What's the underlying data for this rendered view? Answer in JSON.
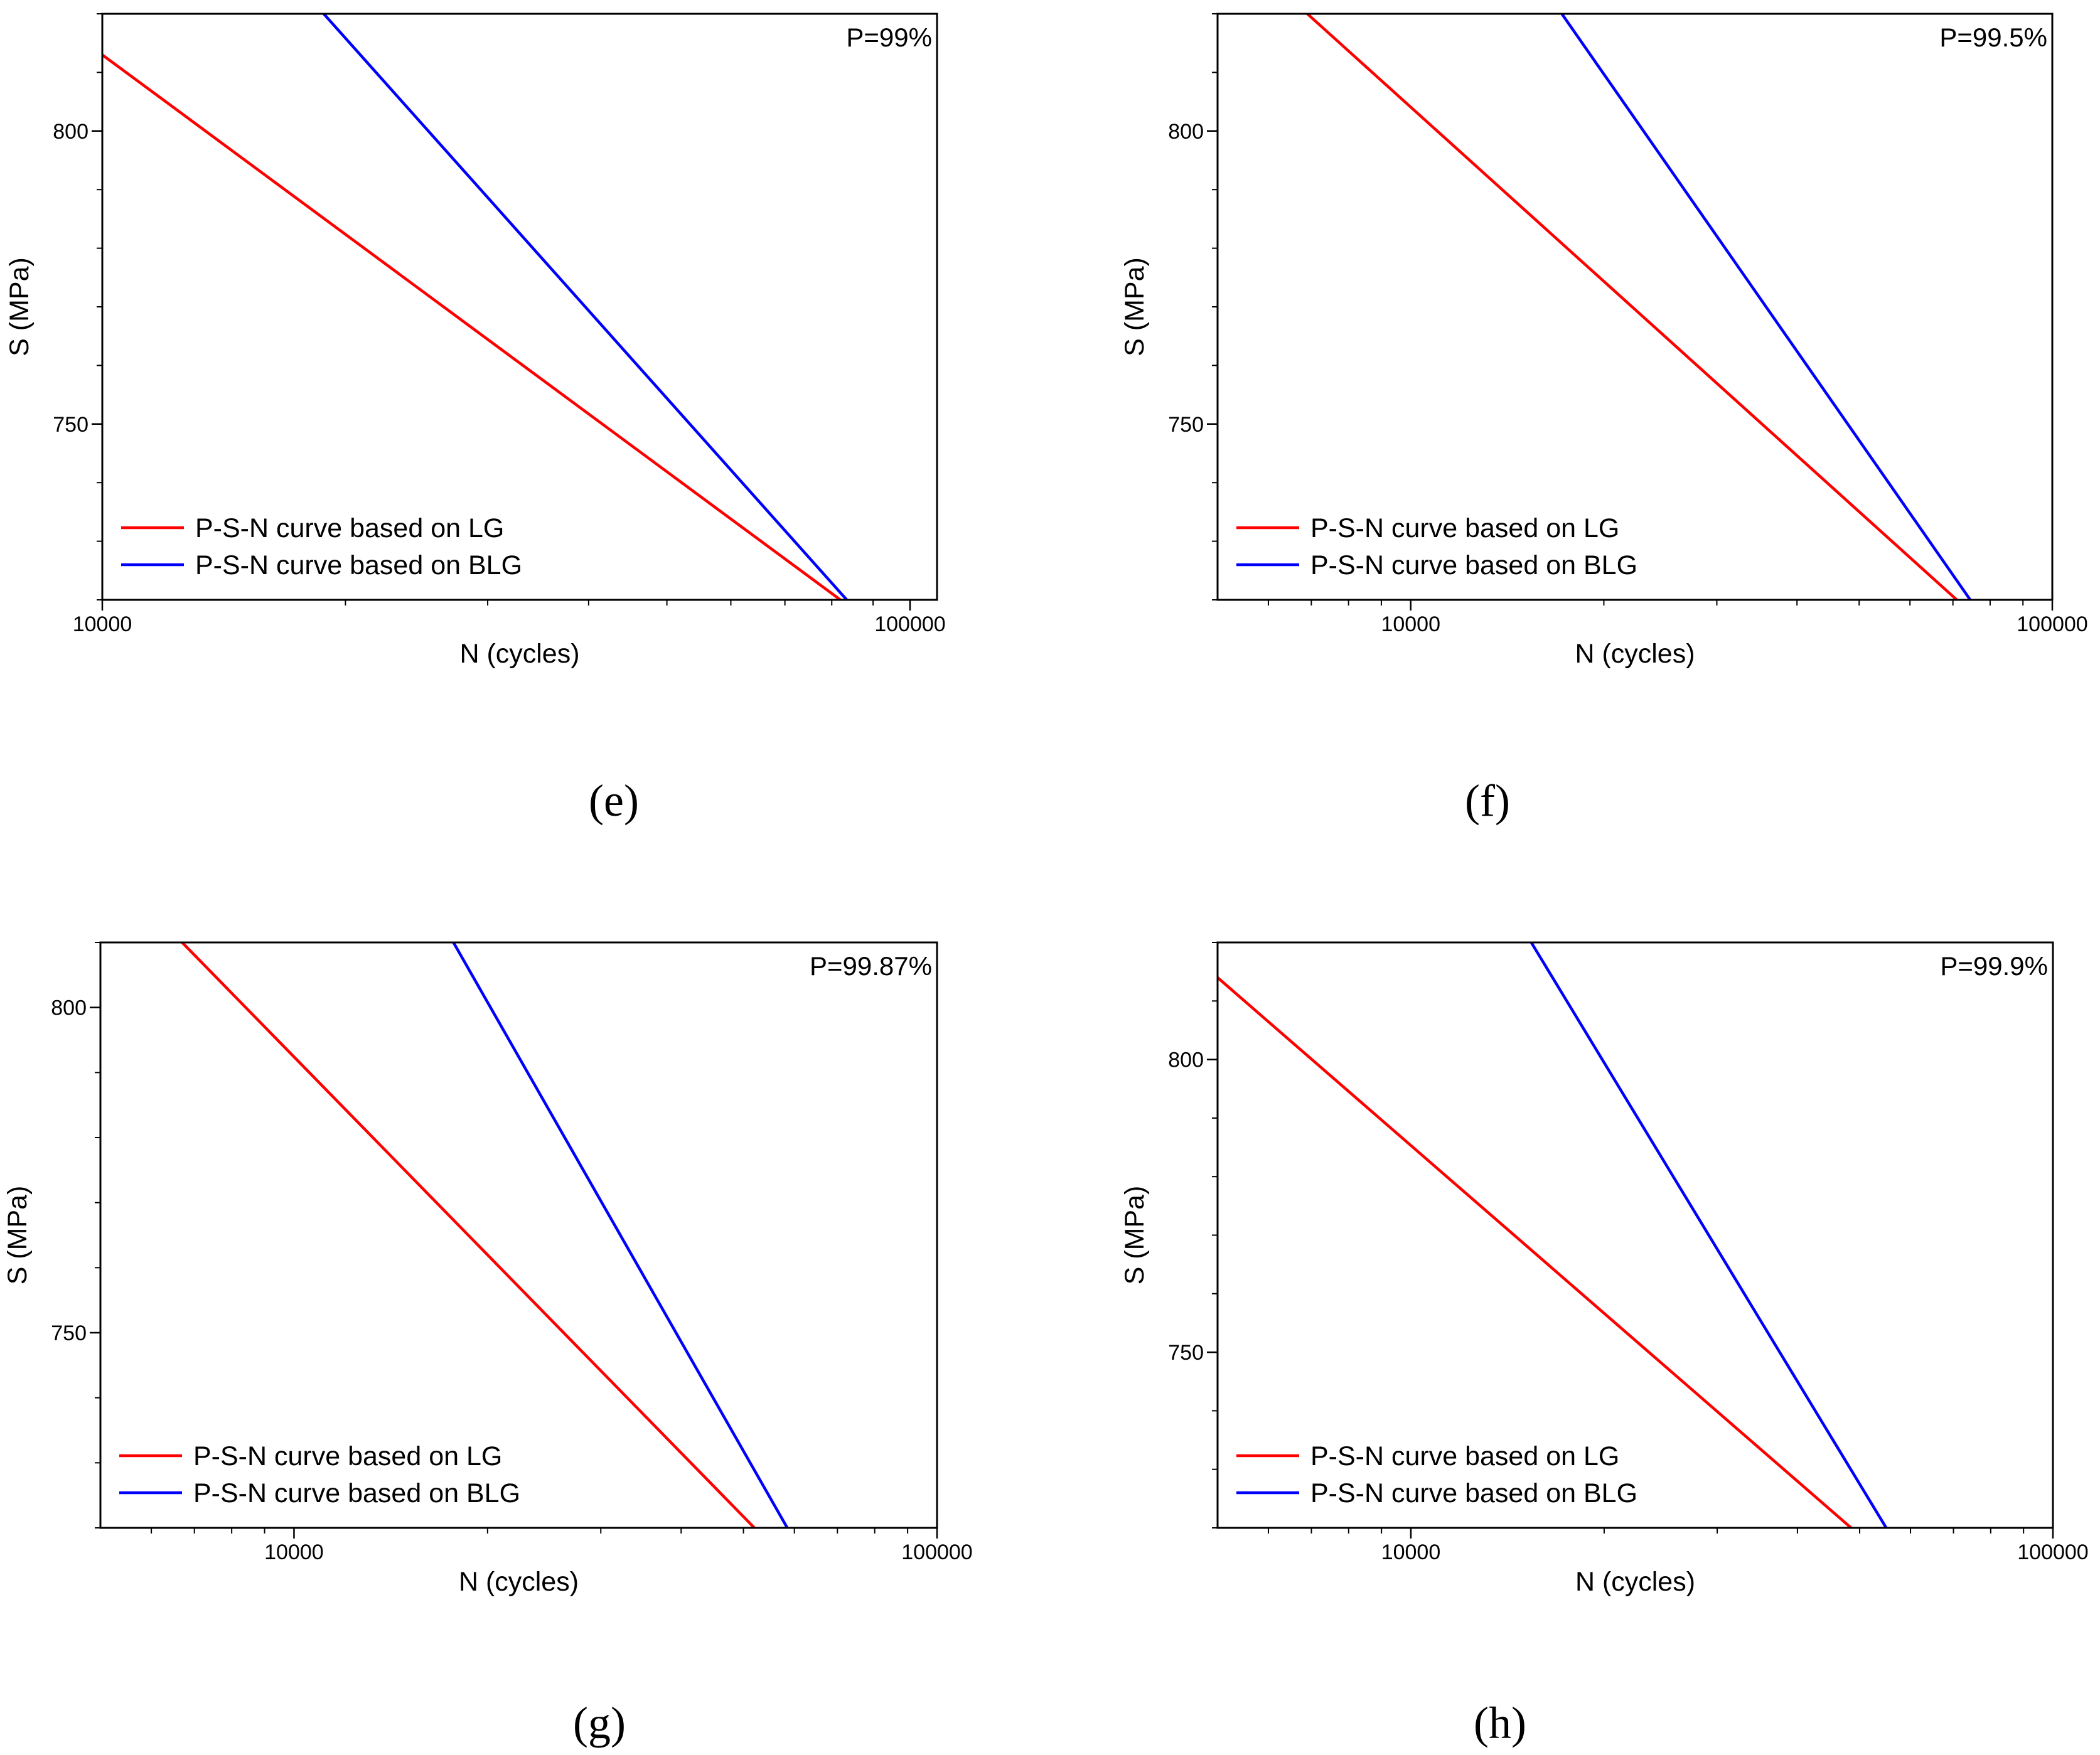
{
  "chart_data": [
    {
      "type": "line",
      "panel": "(e)",
      "annotation": "P=99%",
      "xlabel": "N (cycles)",
      "ylabel": "S (MPa)",
      "xscale": "log",
      "xlim": [
        10000,
        108000
      ],
      "ylim": [
        720,
        820
      ],
      "xticks": [
        {
          "value": 10000,
          "label": "10000"
        },
        {
          "value": 100000,
          "label": "100000"
        }
      ],
      "yticks": [
        {
          "value": 750,
          "label": "750"
        },
        {
          "value": 800,
          "label": "800"
        }
      ],
      "legend_position": "bottom-left",
      "series": [
        {
          "name": "P-S-N curve based on LG",
          "color": "#ff0000",
          "x": [
            10000,
            82000
          ],
          "y": [
            813,
            720
          ]
        },
        {
          "name": "P-S-N curve based on BLG",
          "color": "#0000ff",
          "x": [
            18800,
            83500
          ],
          "y": [
            820,
            720
          ]
        }
      ]
    },
    {
      "type": "line",
      "panel": "(f)",
      "annotation": "P=99.5%",
      "xlabel": "N (cycles)",
      "ylabel": "S (MPa)",
      "xscale": "log",
      "xlim": [
        5000,
        100000
      ],
      "ylim": [
        720,
        820
      ],
      "xticks": [
        {
          "value": 10000,
          "label": "10000"
        },
        {
          "value": 100000,
          "label": "100000"
        }
      ],
      "yticks": [
        {
          "value": 750,
          "label": "750"
        },
        {
          "value": 800,
          "label": "800"
        }
      ],
      "legend_position": "bottom-left",
      "series": [
        {
          "name": "P-S-N curve based on LG",
          "color": "#ff0000",
          "x": [
            6900,
            71000
          ],
          "y": [
            820,
            720
          ]
        },
        {
          "name": "P-S-N curve based on BLG",
          "color": "#0000ff",
          "x": [
            17200,
            74500
          ],
          "y": [
            820,
            720
          ]
        }
      ]
    },
    {
      "type": "line",
      "panel": "(g)",
      "annotation": "P=99.87%",
      "xlabel": "N (cycles)",
      "ylabel": "S (MPa)",
      "xscale": "log",
      "xlim": [
        5000,
        100000
      ],
      "ylim": [
        720,
        810
      ],
      "xticks": [
        {
          "value": 10000,
          "label": "10000"
        },
        {
          "value": 100000,
          "label": "100000"
        }
      ],
      "yticks": [
        {
          "value": 750,
          "label": "750"
        },
        {
          "value": 800,
          "label": "800"
        }
      ],
      "legend_position": "bottom-left",
      "series": [
        {
          "name": "P-S-N curve based on LG",
          "color": "#ff0000",
          "x": [
            6700,
            52000
          ],
          "y": [
            810,
            720
          ]
        },
        {
          "name": "P-S-N curve based on BLG",
          "color": "#0000ff",
          "x": [
            17700,
            58500
          ],
          "y": [
            810,
            720
          ]
        }
      ]
    },
    {
      "type": "line",
      "panel": "(h)",
      "annotation": "P=99.9%",
      "xlabel": "N (cycles)",
      "ylabel": "S (MPa)",
      "xscale": "log",
      "xlim": [
        5000,
        100000
      ],
      "ylim": [
        720,
        820
      ],
      "xticks": [
        {
          "value": 10000,
          "label": "10000"
        },
        {
          "value": 100000,
          "label": "100000"
        }
      ],
      "yticks": [
        {
          "value": 750,
          "label": "750"
        },
        {
          "value": 800,
          "label": "800"
        }
      ],
      "legend_position": "bottom-left",
      "series": [
        {
          "name": "P-S-N curve based on LG",
          "color": "#ff0000",
          "x": [
            5000,
            48500
          ],
          "y": [
            814,
            720
          ]
        },
        {
          "name": "P-S-N curve based on BLG",
          "color": "#0000ff",
          "x": [
            15400,
            55000
          ],
          "y": [
            820,
            720
          ]
        }
      ]
    }
  ]
}
